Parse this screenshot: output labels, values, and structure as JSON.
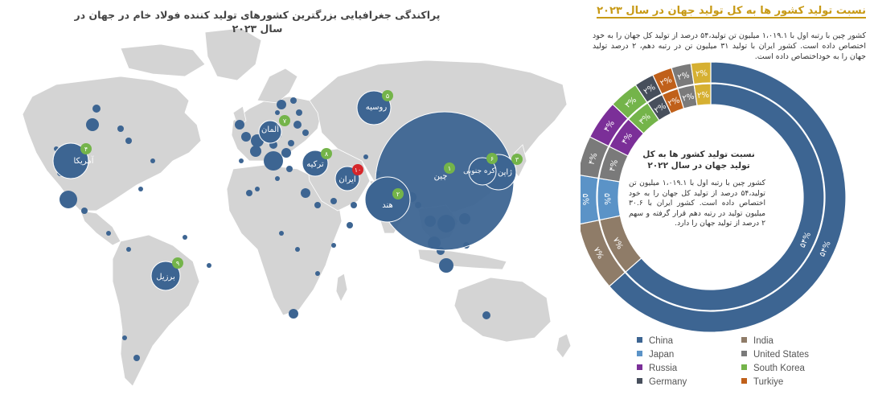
{
  "map": {
    "title": "پراکندگی جغرافیایی بزرگترین کشورهای تولید کننده فولاد خام در جهان در سال ۲۰۲۳",
    "countries": [
      {
        "name": "چین",
        "rank": "۱"
      },
      {
        "name": "هند",
        "rank": "۲"
      },
      {
        "name": "ژاپن",
        "rank": "۳"
      },
      {
        "name": "آمریکا",
        "rank": "۴"
      },
      {
        "name": "روسیه",
        "rank": "۵"
      },
      {
        "name": "کره جنوبی",
        "rank": "۶"
      },
      {
        "name": "آلمان",
        "rank": "۷"
      },
      {
        "name": "ترکیه",
        "rank": "۸"
      },
      {
        "name": "برزیل",
        "rank": "۹"
      },
      {
        "name": "ایران",
        "rank": "۱۰"
      }
    ]
  },
  "right": {
    "title": "نسبت تولید کشور ها به کل تولید جهان در سال ۲۰۲۳",
    "desc_2023": "کشور چین با رتبه اول با ۱،۰۱۹.۱ میلیون تن تولید،۵۴ درصد از تولید کل جهان را به خود اختصاص داده است. کشور ایران با تولید ۳۱ میلیون تن در رتبه دهم، ۲ درصد تولید جهان را به خوداختصاص داده است.",
    "inner_title": "نسبت تولید کشور ها به کل تولید جهان در سال ۲۰۲۲",
    "inner_text": "کشور چین با رتبه اول با ۱،۰۱۹.۱ میلیون تن تولید،۵۴ درصد از تولید کل جهان را به خود اختصاص داده است. کشور ایران با ۳۰.۶ میلیون تولید در رتبه دهم قرار گرفته و سهم ۲ درصد از تولید جهان را دارد."
  },
  "chart_data": {
    "type": "pie",
    "subtype": "double-donut",
    "rings": [
      {
        "name": "۲۰۲۳",
        "ring": "outer"
      },
      {
        "name": "۲۰۲۲",
        "ring": "inner"
      }
    ],
    "categories": [
      "China",
      "India",
      "Japan",
      "United States",
      "Russia",
      "South Korea",
      "Germany",
      "Turkiye",
      "Brazil",
      "Iran"
    ],
    "outer_values": [
      54,
      7,
      5,
      4,
      4,
      3,
      2,
      2,
      2,
      2
    ],
    "inner_values": [
      54,
      7,
      5,
      4,
      4,
      3,
      2,
      2,
      2,
      2
    ],
    "value_labels": [
      "۵۴%",
      "۷%",
      "۵%",
      "۴%",
      "۴%",
      "۳%",
      "۲%",
      "۲%",
      "۲%",
      "۲%"
    ],
    "colors": [
      "#3d6592",
      "#8f7c68",
      "#5b93c7",
      "#7a7a7a",
      "#7b2f98",
      "#74b44a",
      "#474f5c",
      "#c0601a",
      "#7a7a7a",
      "#d6b032"
    ],
    "legend": [
      "China",
      "India",
      "Japan",
      "United States",
      "Russia",
      "South Korea",
      "Germany",
      "Turkiye"
    ],
    "legend_position": "bottom"
  }
}
